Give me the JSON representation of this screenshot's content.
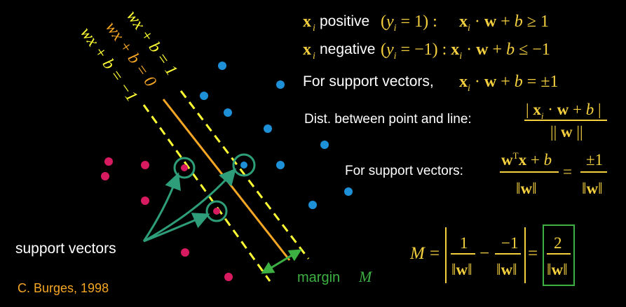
{
  "line_labels": {
    "plus_one": "wx + b = 1",
    "zero": "wx + b = 0",
    "minus_one": "wx + b = −1"
  },
  "conditions": {
    "positive_word": "positive",
    "negative_word": "negative",
    "support_word": "For support vectors,"
  },
  "distance_text": "Dist. between point and line:",
  "support_formula_text": "For support vectors:",
  "support_vectors_label": "support vectors",
  "margin_label": "margin",
  "margin_symbol": "M",
  "credit": "C. Burges, 1998",
  "colors": {
    "positive_point": "#1e90d8",
    "negative_point": "#d81b60",
    "margin_line": "#ffff33",
    "decision_line": "#f5a623",
    "support_ring": "#2e9e7a",
    "formula": "#f4d03f",
    "credit": "#f5a623",
    "margin_text": "#3cb043"
  }
}
